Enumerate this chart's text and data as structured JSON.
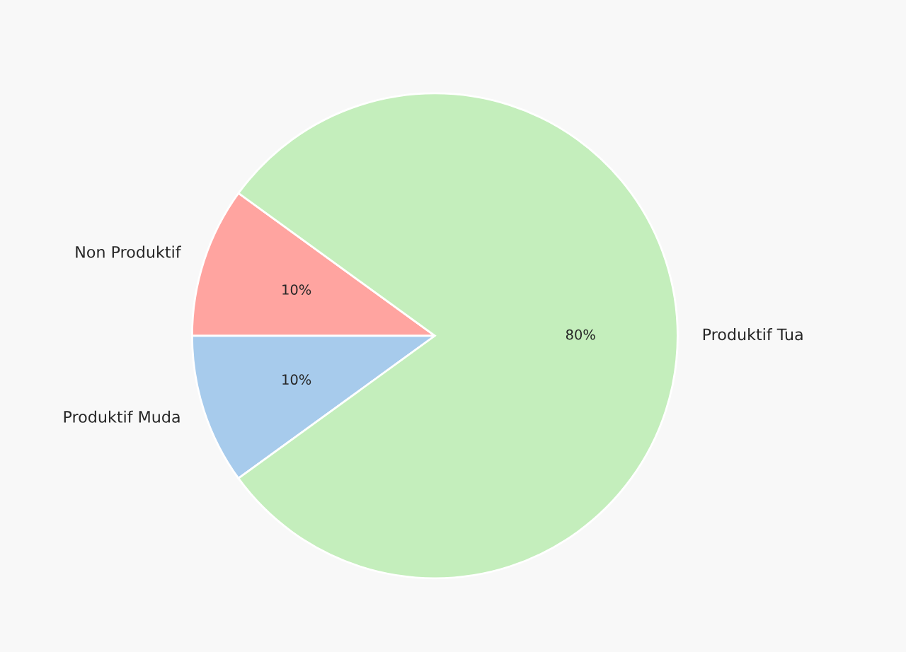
{
  "chart_data": {
    "type": "pie",
    "categories": [
      "Non Produktif",
      "Produktif Muda",
      "Produktif Tua"
    ],
    "values": [
      10,
      10,
      80
    ],
    "colors": [
      "#ffa4a0",
      "#a7cbec",
      "#c4eebc"
    ],
    "value_labels": [
      "10%",
      "10%",
      "80%"
    ],
    "legend": false
  }
}
